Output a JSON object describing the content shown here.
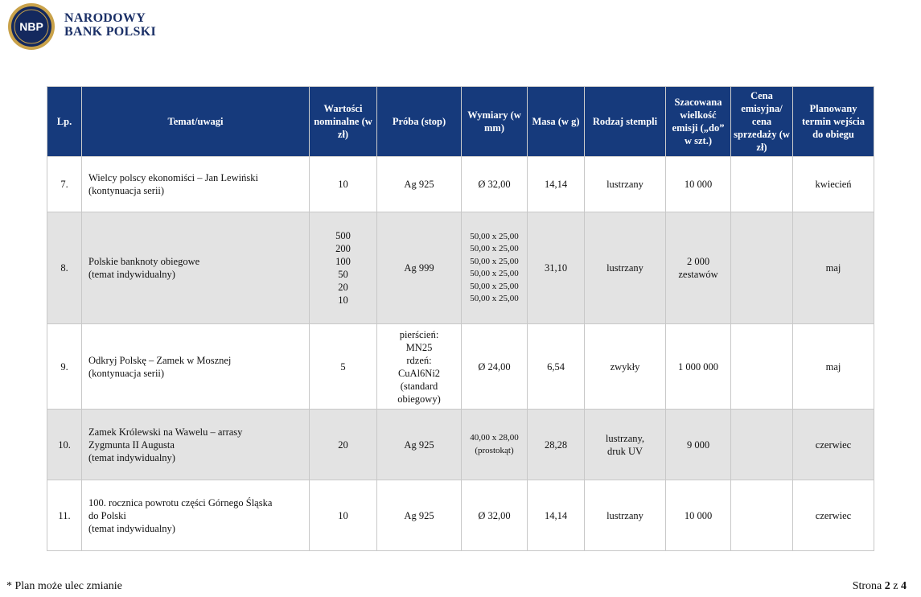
{
  "header": {
    "logo": "NBP",
    "bank_name_line1": "NARODOWY",
    "bank_name_line2": "BANK POLSKI"
  },
  "table": {
    "columns": [
      "Lp.",
      "Temat/uwagi",
      "Wartości nominalne (w zł)",
      "Próba (stop)",
      "Wymiary (w mm)",
      "Masa (w g)",
      "Rodzaj stempli",
      "Szacowana wielkość emisji („do” w szt.)",
      "Cena emisyjna/ cena sprzedaży (w zł)",
      "Planowany termin wejścia do obiegu"
    ],
    "rows": [
      [
        "7.",
        "Wielcy polscy ekonomiści – Jan Lewiński\n(kontynuacja serii)",
        "10",
        "Ag 925",
        "Ø 32,00",
        "14,14",
        "lustrzany",
        "10 000",
        "",
        "kwiecień"
      ],
      [
        "8.",
        "Polskie banknoty obiegowe\n(temat indywidualny)",
        "500\n200\n100\n50\n20\n10",
        "Ag 999",
        "50,00 x 25,00\n50,00 x 25,00\n50,00 x 25,00\n50,00 x 25,00\n50,00 x 25,00\n50,00 x 25,00",
        "31,10",
        "lustrzany",
        "2 000\nzestawów",
        "",
        "maj"
      ],
      [
        "9.",
        "Odkryj Polskę – Zamek w Mosznej\n(kontynuacja serii)",
        "5",
        "pierścień:\nMN25\nrdzeń:\nCuAl6Ni2\n(standard\nobiegowy)",
        "Ø 24,00",
        "6,54",
        "zwykły",
        "1 000 000",
        "",
        "maj"
      ],
      [
        "10.",
        "Zamek Królewski na Wawelu – arrasy\nZygmunta II Augusta\n(temat indywidualny)",
        "20",
        "Ag 925",
        "40,00 x 28,00\n(prostokąt)",
        "28,28",
        "lustrzany,\ndruk UV",
        "9 000",
        "",
        "czerwiec"
      ],
      [
        "11.",
        "100. rocznica powrotu części Górnego Śląska\ndo Polski\n(temat indywidualny)",
        "10",
        "Ag 925",
        "Ø 32,00",
        "14,14",
        "lustrzany",
        "10 000",
        "",
        "czerwiec"
      ]
    ]
  },
  "footer": {
    "note": "* Plan może ulec zmianie",
    "page_label": "Strona",
    "page_current": "2",
    "page_separator": "z",
    "page_total": "4"
  }
}
